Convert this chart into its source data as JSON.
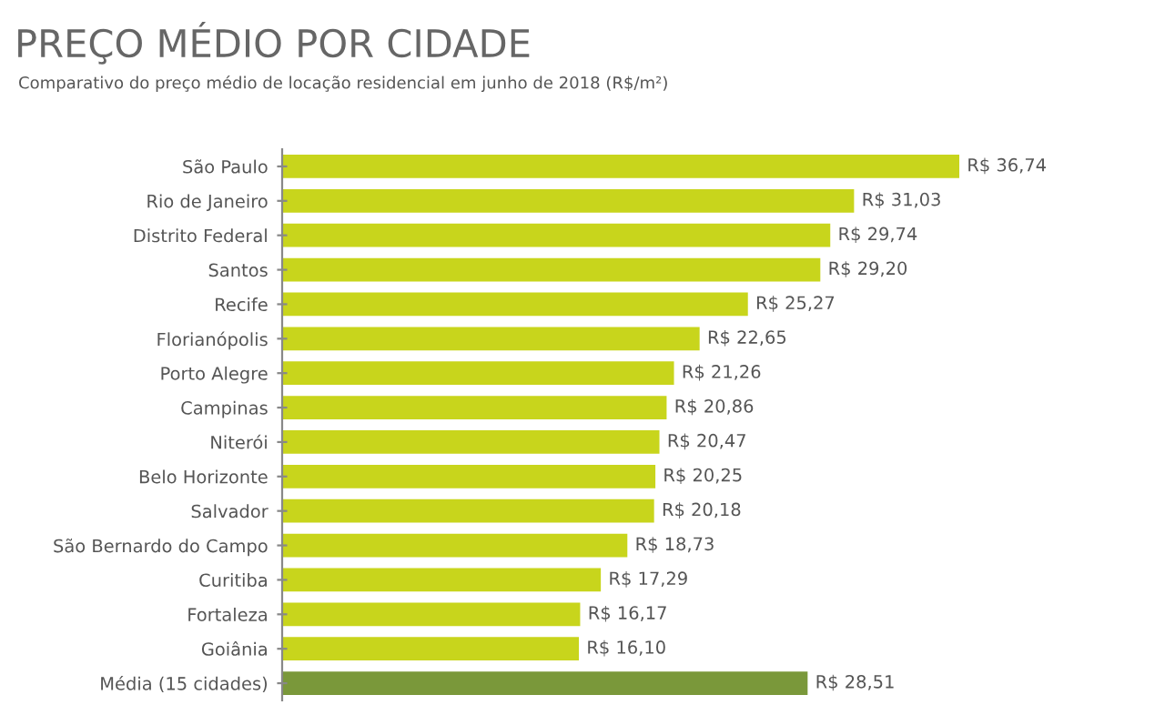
{
  "chart_data": {
    "type": "bar",
    "orientation": "horizontal",
    "title": "PREÇO MÉDIO POR CIDADE",
    "subtitle": "Comparativo do preço médio de locação residencial em junho de 2018 (R$/m²)",
    "categories": [
      "São Paulo",
      "Rio de Janeiro",
      "Distrito Federal",
      "Santos",
      "Recife",
      "Florianópolis",
      "Porto Alegre",
      "Campinas",
      "Niterói",
      "Belo Horizonte",
      "Salvador",
      "São Bernardo do Campo",
      "Curitiba",
      "Fortaleza",
      "Goiânia",
      "Média (15 cidades)"
    ],
    "values": [
      36.74,
      31.03,
      29.74,
      29.2,
      25.27,
      22.65,
      21.26,
      20.86,
      20.47,
      20.25,
      20.18,
      18.73,
      17.29,
      16.17,
      16.1,
      28.51
    ],
    "colors": [
      "#c8d51c",
      "#c8d51c",
      "#c8d51c",
      "#c8d51c",
      "#c8d51c",
      "#c8d51c",
      "#c8d51c",
      "#c8d51c",
      "#c8d51c",
      "#c8d51c",
      "#c8d51c",
      "#c8d51c",
      "#c8d51c",
      "#c8d51c",
      "#c8d51c",
      "#7a983a"
    ],
    "value_labels": [
      "R$ 36,74",
      "R$ 31,03",
      "R$ 29,74",
      "R$ 29,20",
      "R$ 25,27",
      "R$ 22,65",
      "R$ 21,26",
      "R$ 20,86",
      "R$ 20,47",
      "R$ 20,25",
      "R$ 20,18",
      "R$ 18,73",
      "R$ 17,29",
      "R$ 16,17",
      "R$ 16,10",
      "R$ 28,51"
    ],
    "grid": false,
    "legend": false
  }
}
